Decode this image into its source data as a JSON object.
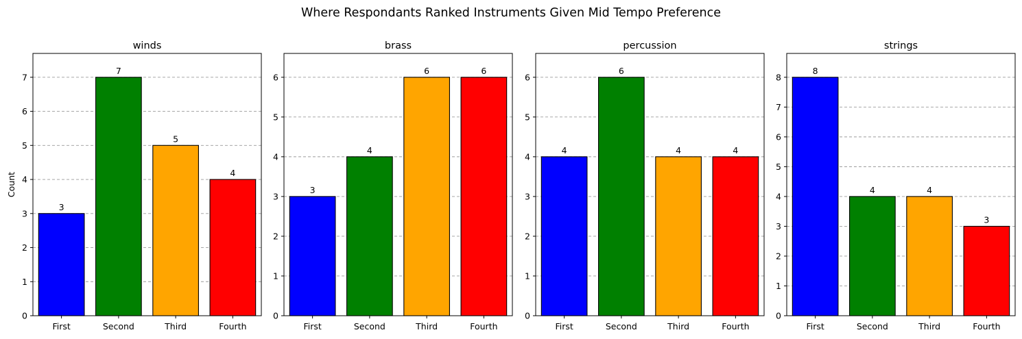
{
  "chart_data": {
    "type": "bar",
    "title": "Where Respondants Ranked Instruments Given Mid Tempo Preference",
    "ylabel": "Count",
    "categories": [
      "First",
      "Second",
      "Third",
      "Fourth"
    ],
    "bar_colors": [
      "#0000ff",
      "#008000",
      "#ffa500",
      "#ff0000"
    ],
    "grid": "y-dashed",
    "panels": [
      {
        "title": "winds",
        "values": [
          3,
          7,
          5,
          4
        ],
        "ylim": [
          0,
          7.7
        ],
        "yticks": [
          "0",
          "1",
          "2",
          "3",
          "4",
          "5",
          "6",
          "7"
        ],
        "show_ylabel": true
      },
      {
        "title": "brass",
        "values": [
          3,
          4,
          6,
          6
        ],
        "ylim": [
          0,
          6.6
        ],
        "yticks": [
          "0",
          "1",
          "2",
          "3",
          "4",
          "5",
          "6"
        ],
        "show_ylabel": false
      },
      {
        "title": "percussion",
        "values": [
          4,
          6,
          4,
          4
        ],
        "ylim": [
          0,
          6.6
        ],
        "yticks": [
          "0",
          "1",
          "2",
          "3",
          "4",
          "5",
          "6"
        ],
        "show_ylabel": false
      },
      {
        "title": "strings",
        "values": [
          8,
          4,
          4,
          3
        ],
        "ylim": [
          0,
          8.8
        ],
        "yticks": [
          "0",
          "1",
          "2",
          "3",
          "4",
          "5",
          "6",
          "7",
          "8"
        ],
        "show_ylabel": false
      }
    ]
  }
}
